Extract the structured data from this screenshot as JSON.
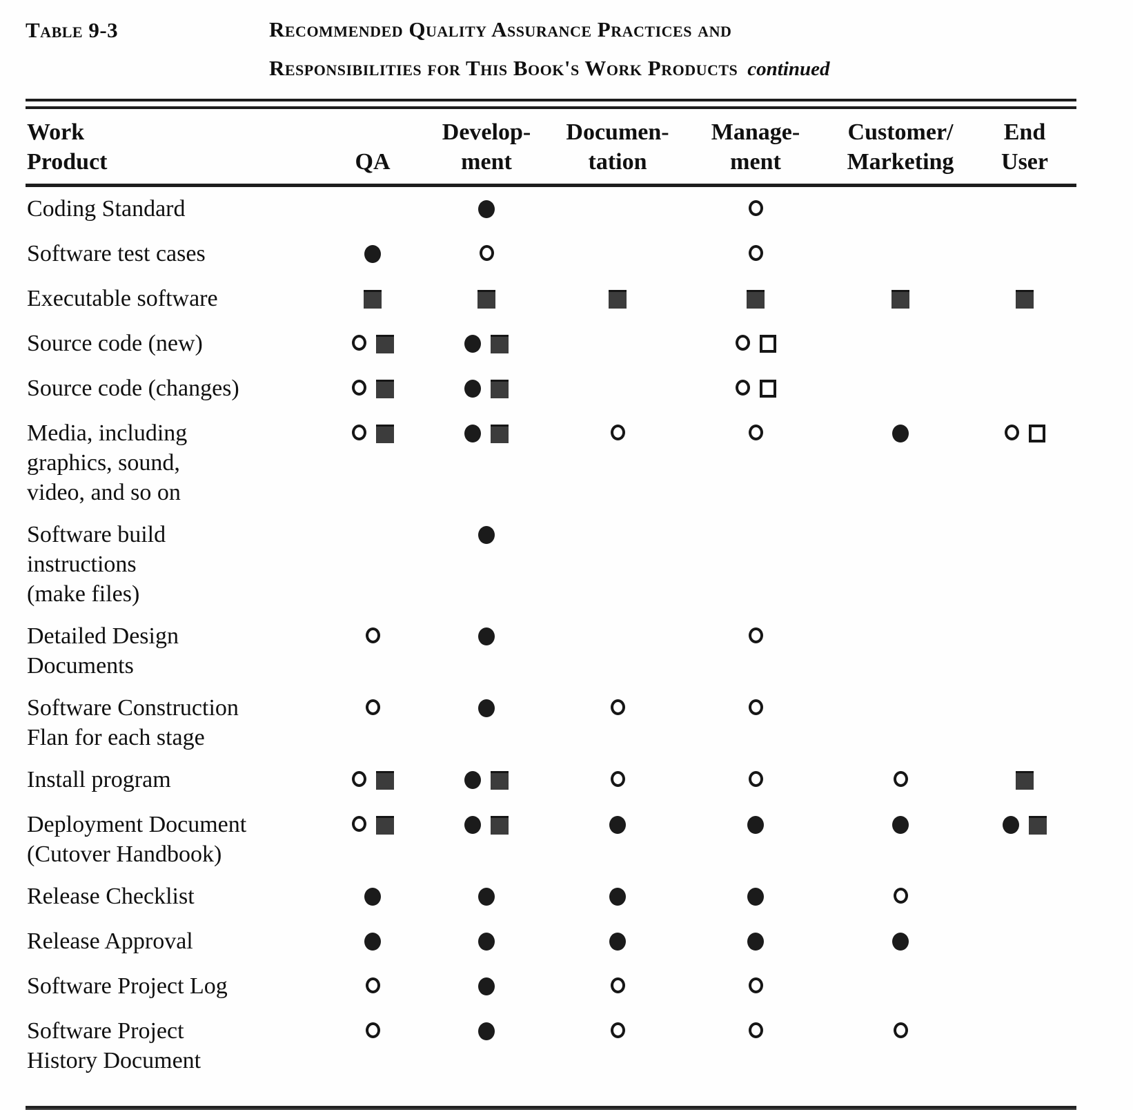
{
  "title": {
    "table_label": "Table 9-3",
    "heading_line1": "Recommended Quality Assurance Practices and",
    "heading_line2": "Responsibilities for This Book's Work Products",
    "continued_note": "continued"
  },
  "colors": {
    "text": "#101010",
    "square_fill": "#3c3c3c",
    "circle_fill": "#1b1b1b",
    "rule": "#1d1d1d",
    "background": "#fefefe"
  },
  "symbol_types": {
    "fc": "filled-circle",
    "oc": "open-circle",
    "fs": "filled-square",
    "os": "open-square"
  },
  "table": {
    "header": {
      "work_product_lines": [
        "Work",
        "Product"
      ],
      "columns": [
        {
          "key": "qa",
          "lines": [
            "QA"
          ]
        },
        {
          "key": "development",
          "lines": [
            "Develop-",
            "ment"
          ]
        },
        {
          "key": "documentation",
          "lines": [
            "Documen-",
            "tation"
          ]
        },
        {
          "key": "management",
          "lines": [
            "Manage-",
            "ment"
          ]
        },
        {
          "key": "customer_marketing",
          "lines": [
            "Customer/",
            "Marketing"
          ]
        },
        {
          "key": "end_user",
          "lines": [
            "End",
            "User"
          ]
        }
      ]
    },
    "rows": [
      {
        "label_lines": [
          "Coding Standard"
        ],
        "cells": {
          "qa": [],
          "development": [
            "fc"
          ],
          "documentation": [],
          "management": [
            "oc"
          ],
          "customer_marketing": [],
          "end_user": []
        }
      },
      {
        "label_lines": [
          "Software test cases"
        ],
        "cells": {
          "qa": [
            "fc"
          ],
          "development": [
            "oc"
          ],
          "documentation": [],
          "management": [
            "oc"
          ],
          "customer_marketing": [],
          "end_user": []
        }
      },
      {
        "label_lines": [
          "Executable software"
        ],
        "cells": {
          "qa": [
            "fs"
          ],
          "development": [
            "fs"
          ],
          "documentation": [
            "fs"
          ],
          "management": [
            "fs"
          ],
          "customer_marketing": [
            "fs"
          ],
          "end_user": [
            "fs"
          ]
        }
      },
      {
        "label_lines": [
          "Source code (new)"
        ],
        "cells": {
          "qa": [
            "oc",
            "fs"
          ],
          "development": [
            "fc",
            "fs"
          ],
          "documentation": [],
          "management": [
            "oc",
            "os"
          ],
          "customer_marketing": [],
          "end_user": []
        }
      },
      {
        "label_lines": [
          "Source code (changes)"
        ],
        "cells": {
          "qa": [
            "oc",
            "fs"
          ],
          "development": [
            "fc",
            "fs"
          ],
          "documentation": [],
          "management": [
            "oc",
            "os"
          ],
          "customer_marketing": [],
          "end_user": []
        }
      },
      {
        "label_lines": [
          "Media, including",
          "graphics, sound,",
          "video, and so on"
        ],
        "cells": {
          "qa": [
            "oc",
            "fs"
          ],
          "development": [
            "fc",
            "fs"
          ],
          "documentation": [
            "oc"
          ],
          "management": [
            "oc"
          ],
          "customer_marketing": [
            "fc"
          ],
          "end_user": [
            "oc",
            "os"
          ]
        }
      },
      {
        "label_lines": [
          "Software  build",
          "instructions",
          "(make files)"
        ],
        "cells": {
          "qa": [],
          "development": [
            "fc"
          ],
          "documentation": [],
          "management": [],
          "customer_marketing": [],
          "end_user": []
        }
      },
      {
        "label_lines": [
          "Detailed Design",
          "Documents"
        ],
        "cells": {
          "qa": [
            "oc"
          ],
          "development": [
            "fc"
          ],
          "documentation": [],
          "management": [
            "oc"
          ],
          "customer_marketing": [],
          "end_user": []
        }
      },
      {
        "label_lines": [
          "Software  Construction",
          "Flan for each stage"
        ],
        "cells": {
          "qa": [
            "oc"
          ],
          "development": [
            "fc"
          ],
          "documentation": [
            "oc"
          ],
          "management": [
            "oc"
          ],
          "customer_marketing": [],
          "end_user": []
        }
      },
      {
        "label_lines": [
          "Install program"
        ],
        "cells": {
          "qa": [
            "oc",
            "fs"
          ],
          "development": [
            "fc",
            "fs"
          ],
          "documentation": [
            "oc"
          ],
          "management": [
            "oc"
          ],
          "customer_marketing": [
            "oc"
          ],
          "end_user": [
            "fs"
          ]
        }
      },
      {
        "label_lines": [
          "Deployment Document",
          "(Cutover  Handbook)"
        ],
        "cells": {
          "qa": [
            "oc",
            "fs"
          ],
          "development": [
            "fc",
            "fs"
          ],
          "documentation": [
            "fc"
          ],
          "management": [
            "fc"
          ],
          "customer_marketing": [
            "fc"
          ],
          "end_user": [
            "fc",
            "fs"
          ]
        }
      },
      {
        "label_lines": [
          "Release  Checklist"
        ],
        "cells": {
          "qa": [
            "fc"
          ],
          "development": [
            "fc"
          ],
          "documentation": [
            "fc"
          ],
          "management": [
            "fc"
          ],
          "customer_marketing": [
            "oc"
          ],
          "end_user": []
        }
      },
      {
        "label_lines": [
          "Release  Approval"
        ],
        "cells": {
          "qa": [
            "fc"
          ],
          "development": [
            "fc"
          ],
          "documentation": [
            "fc"
          ],
          "management": [
            "fc"
          ],
          "customer_marketing": [
            "fc"
          ],
          "end_user": []
        }
      },
      {
        "label_lines": [
          "Software Project Log"
        ],
        "cells": {
          "qa": [
            "oc"
          ],
          "development": [
            "fc"
          ],
          "documentation": [
            "oc"
          ],
          "management": [
            "oc"
          ],
          "customer_marketing": [],
          "end_user": []
        }
      },
      {
        "label_lines": [
          "Software Project",
          "History Document"
        ],
        "cells": {
          "qa": [
            "oc"
          ],
          "development": [
            "fc"
          ],
          "documentation": [
            "oc"
          ],
          "management": [
            "oc"
          ],
          "customer_marketing": [
            "oc"
          ],
          "end_user": []
        }
      }
    ]
  }
}
